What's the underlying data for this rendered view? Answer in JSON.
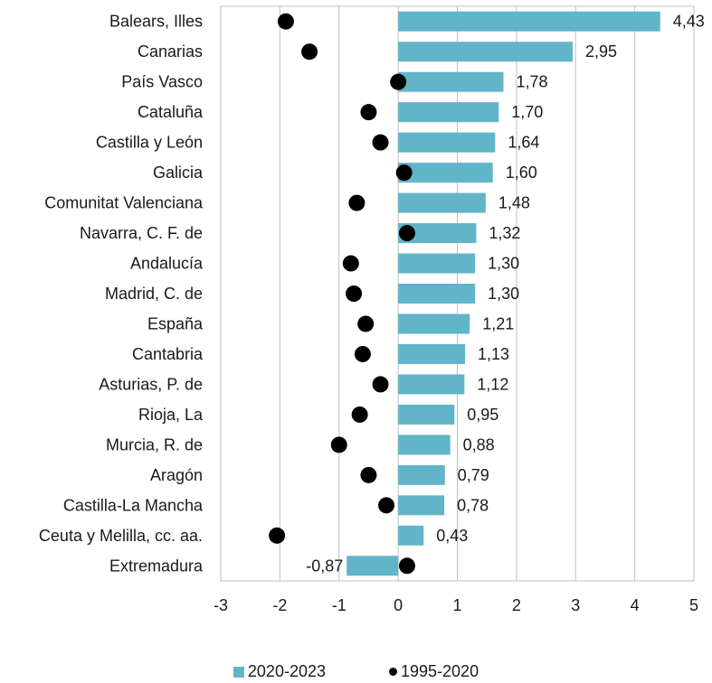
{
  "chart_data": {
    "type": "bar",
    "orientation": "horizontal",
    "categories": [
      "Balears, Illes",
      "Canarias",
      "País Vasco",
      "Cataluña",
      "Castilla y León",
      "Galicia",
      "Comunitat Valenciana",
      "Navarra, C. F. de",
      "Andalucía",
      "Madrid, C. de",
      "España",
      "Cantabria",
      "Asturias, P. de",
      "Rioja, La",
      "Murcia, R. de",
      "Aragón",
      "Castilla-La Mancha",
      "Ceuta y Melilla, cc. aa.",
      "Extremadura"
    ],
    "series": [
      {
        "name": "2020-2023",
        "type": "bar",
        "color": "#62b5c8",
        "values": [
          4.43,
          2.95,
          1.78,
          1.7,
          1.64,
          1.6,
          1.48,
          1.32,
          1.3,
          1.3,
          1.21,
          1.13,
          1.12,
          0.95,
          0.88,
          0.79,
          0.78,
          0.43,
          -0.87
        ],
        "labels": [
          "4,43",
          "2,95",
          "1,78",
          "1,70",
          "1,64",
          "1,60",
          "1,48",
          "1,32",
          "1,30",
          "1,30",
          "1,21",
          "1,13",
          "1,12",
          "0,95",
          "0,88",
          "0,79",
          "0,78",
          "0,43",
          "-0,87"
        ]
      },
      {
        "name": "1995-2020",
        "type": "scatter",
        "color": "#000000",
        "values": [
          -1.9,
          -1.5,
          0.0,
          -0.5,
          -0.3,
          0.1,
          -0.7,
          0.15,
          -0.8,
          -0.75,
          -0.55,
          -0.6,
          -0.3,
          -0.65,
          -1.0,
          -0.5,
          -0.2,
          -2.05,
          0.15
        ]
      }
    ],
    "xlim": [
      -3,
      5
    ],
    "x_ticks": [
      "-3",
      "-2",
      "-1",
      "0",
      "1",
      "2",
      "3",
      "4",
      "5"
    ],
    "grid": "vertical",
    "legend": [
      "2020-2023",
      "1995-2020"
    ],
    "legend_position": "bottom"
  }
}
